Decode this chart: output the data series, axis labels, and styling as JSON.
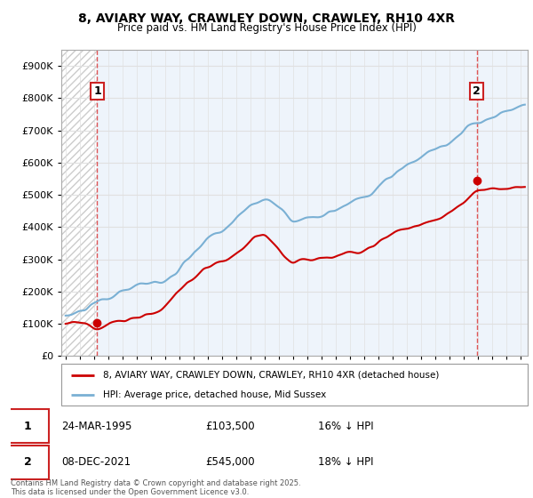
{
  "title1": "8, AVIARY WAY, CRAWLEY DOWN, CRAWLEY, RH10 4XR",
  "title2": "Price paid vs. HM Land Registry's House Price Index (HPI)",
  "ylabel_values": [
    "£0",
    "£100K",
    "£200K",
    "£300K",
    "£400K",
    "£500K",
    "£600K",
    "£700K",
    "£800K",
    "£900K"
  ],
  "ytick_values": [
    0,
    100000,
    200000,
    300000,
    400000,
    500000,
    600000,
    700000,
    800000,
    900000
  ],
  "ylim": [
    0,
    950000
  ],
  "xlim_start": 1992.7,
  "xlim_end": 2025.5,
  "background_color": "#f8f8ff",
  "grid_color": "#e0e0e0",
  "sale1_date": 1995.23,
  "sale1_price": 103500,
  "sale2_date": 2021.93,
  "sale2_price": 545000,
  "legend_label1": "8, AVIARY WAY, CRAWLEY DOWN, CRAWLEY, RH10 4XR (detached house)",
  "legend_label2": "HPI: Average price, detached house, Mid Sussex",
  "annotation1_label": "1",
  "annotation1_date": "24-MAR-1995",
  "annotation1_price": "£103,500",
  "annotation1_hpi": "16% ↓ HPI",
  "annotation2_label": "2",
  "annotation2_date": "08-DEC-2021",
  "annotation2_price": "£545,000",
  "annotation2_hpi": "18% ↓ HPI",
  "footer": "Contains HM Land Registry data © Crown copyright and database right 2025.\nThis data is licensed under the Open Government Licence v3.0.",
  "red_line_color": "#cc0000",
  "blue_line_color": "#7ab0d4",
  "marker_color": "#cc0000",
  "dashed_line_color": "#dd4444",
  "hatch_region_end": 1995.23
}
